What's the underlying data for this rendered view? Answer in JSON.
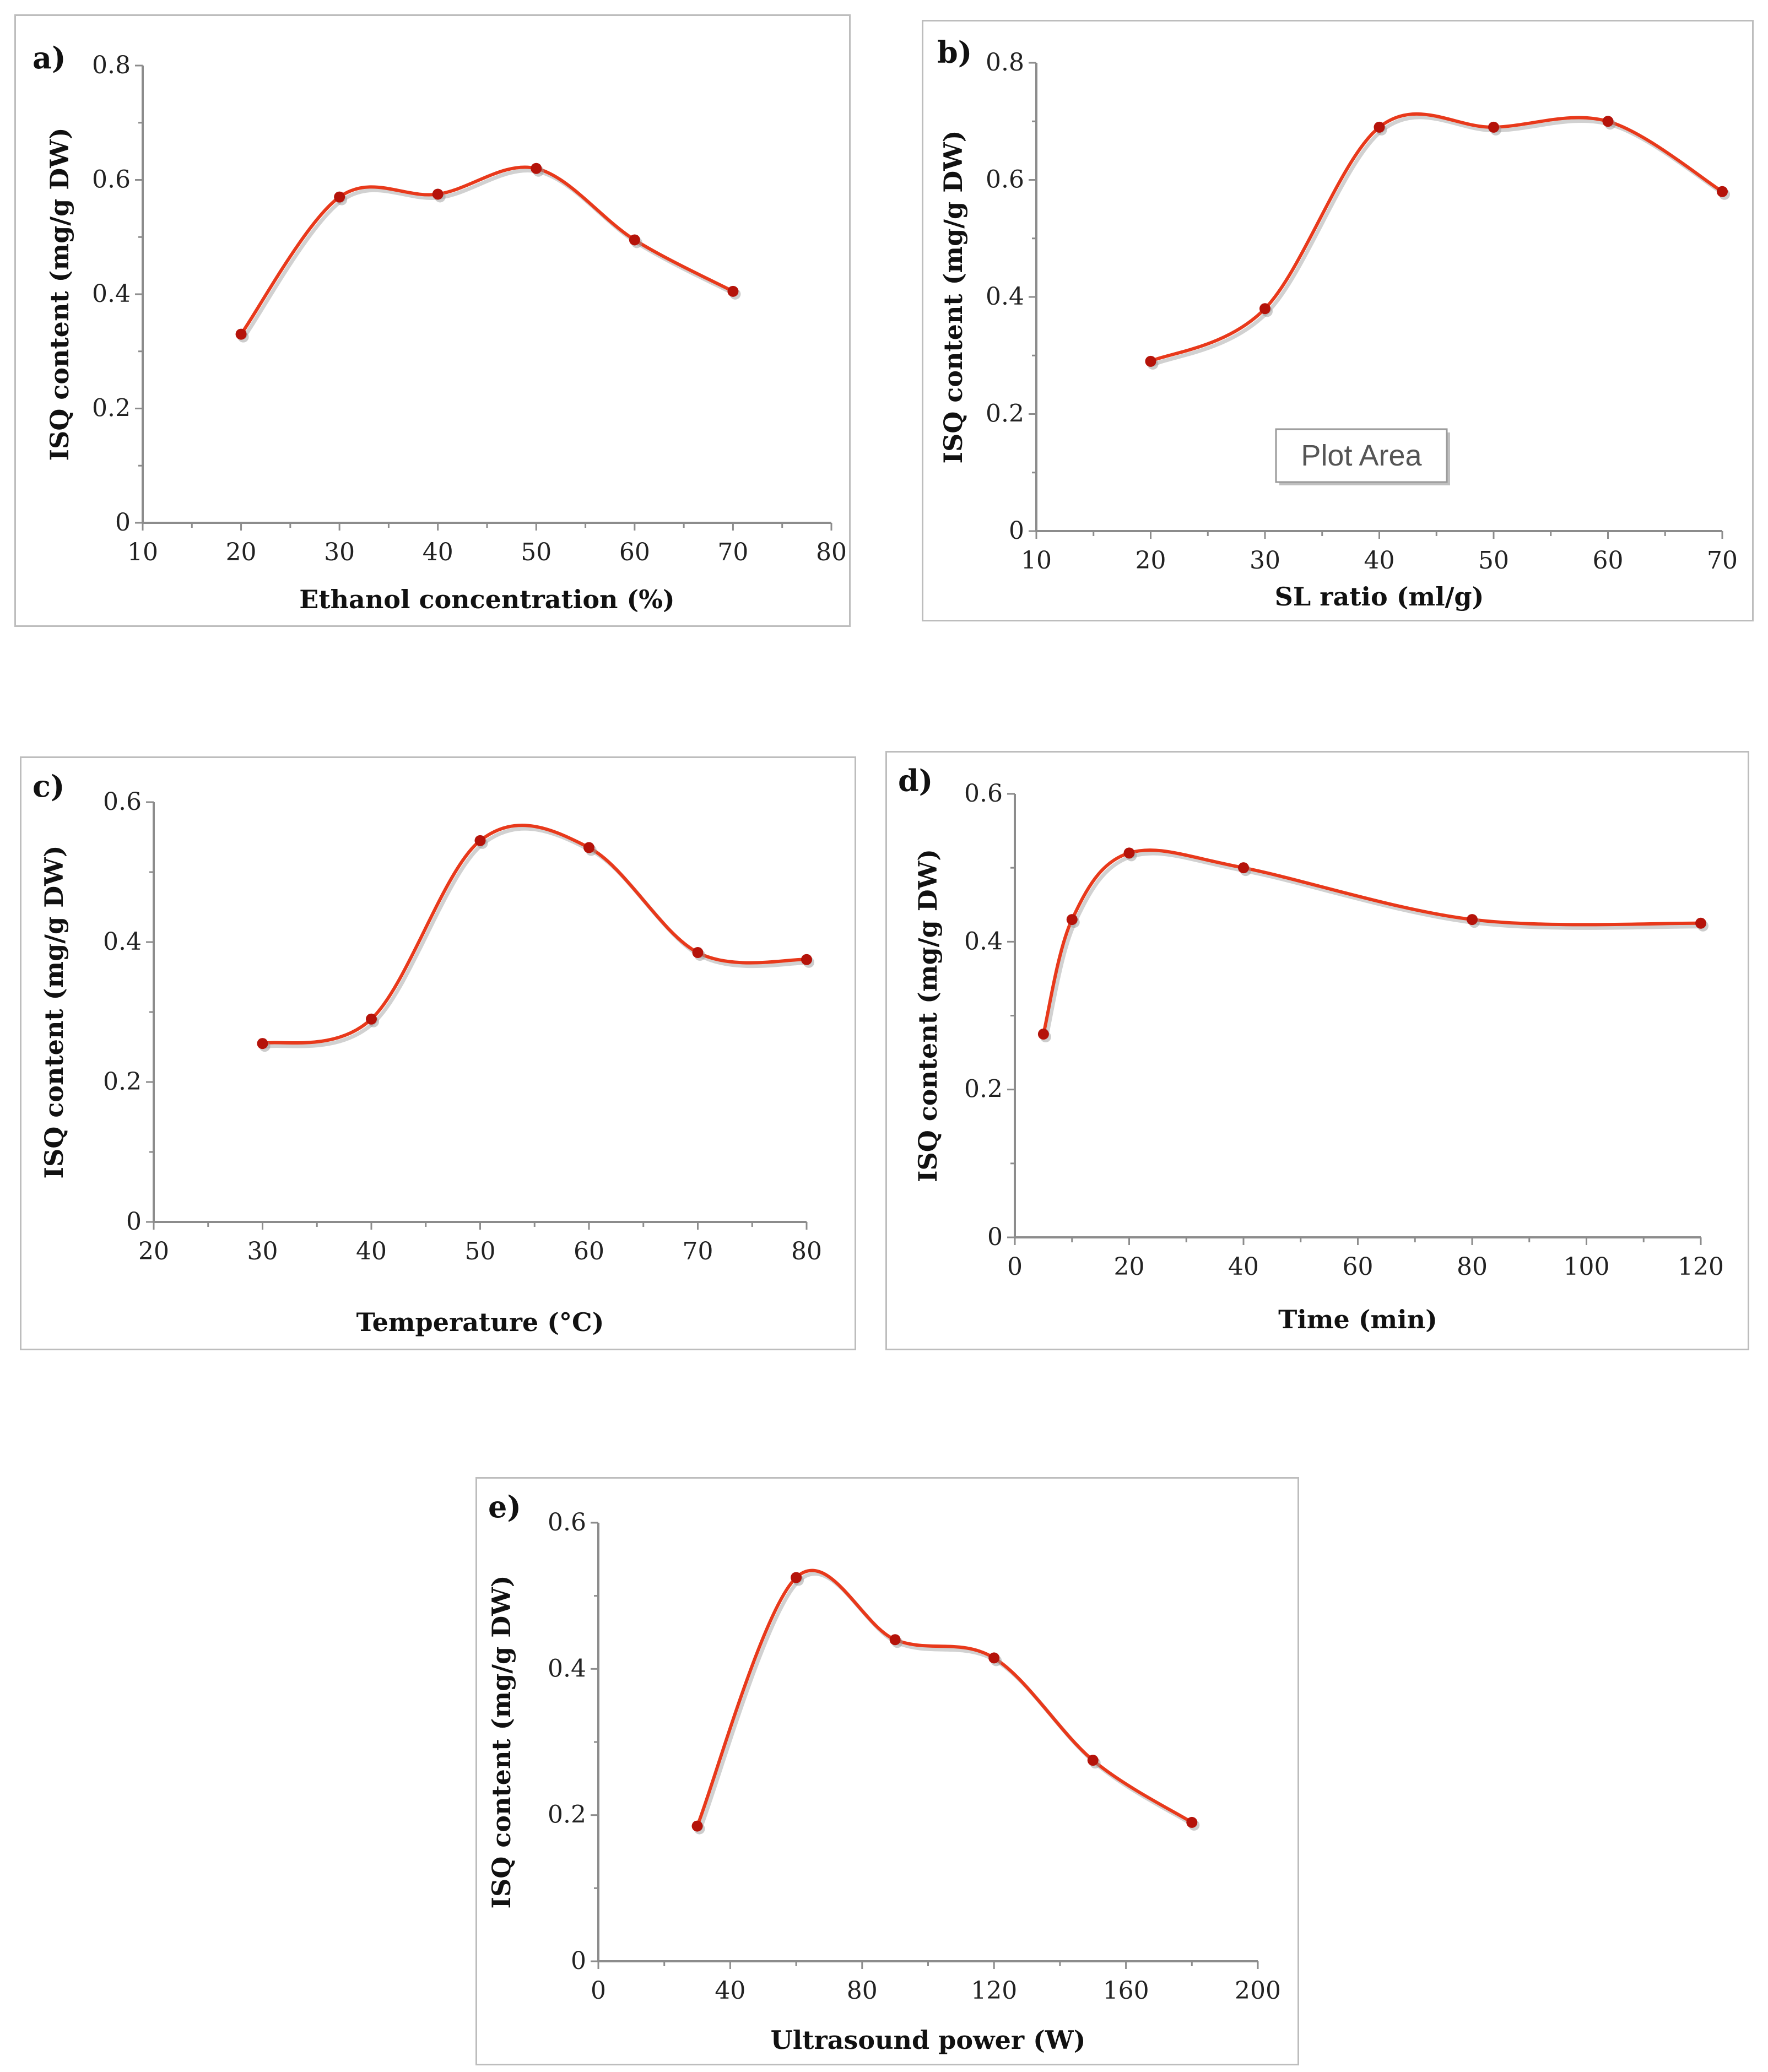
{
  "figure": {
    "line_color": "#e8391b",
    "marker_color": "#b5130a"
  },
  "chart_data": [
    {
      "id": "a",
      "type": "line",
      "panel_label": "a)",
      "title": "",
      "xlabel": "Ethanol concentration (%)",
      "ylabel": "ISQ content (mg/g DW)",
      "xlim": [
        10,
        80
      ],
      "ylim": [
        0,
        0.8
      ],
      "xticks": [
        10,
        20,
        30,
        40,
        50,
        60,
        70,
        80
      ],
      "yticks": [
        "0",
        "0.2",
        "0.4",
        "0.6",
        "0.8"
      ],
      "x": [
        20,
        30,
        40,
        50,
        60,
        70
      ],
      "y": [
        0.33,
        0.57,
        0.575,
        0.62,
        0.495,
        0.405
      ]
    },
    {
      "id": "b",
      "type": "line",
      "panel_label": "b)",
      "title": "",
      "xlabel": "SL ratio (ml/g)",
      "ylabel": "ISQ content (mg/g DW)",
      "xlim": [
        10,
        70
      ],
      "ylim": [
        0,
        0.8
      ],
      "xticks": [
        10,
        20,
        30,
        40,
        50,
        60,
        70
      ],
      "yticks": [
        "0",
        "0.2",
        "0.4",
        "0.6",
        "0.8"
      ],
      "x": [
        20,
        30,
        40,
        50,
        60,
        70
      ],
      "y": [
        0.29,
        0.38,
        0.69,
        0.69,
        0.7,
        0.58
      ],
      "annotation": "Plot Area"
    },
    {
      "id": "c",
      "type": "line",
      "panel_label": "c)",
      "title": "",
      "xlabel": "Temperature (°C)",
      "ylabel": "ISQ content (mg/g DW)",
      "xlim": [
        20,
        80
      ],
      "ylim": [
        0,
        0.6
      ],
      "xticks": [
        20,
        30,
        40,
        50,
        60,
        70,
        80
      ],
      "yticks": [
        "0",
        "0.2",
        "0.4",
        "0.6"
      ],
      "x": [
        30,
        40,
        50,
        60,
        70,
        80
      ],
      "y": [
        0.255,
        0.29,
        0.545,
        0.535,
        0.385,
        0.375
      ]
    },
    {
      "id": "d",
      "type": "line",
      "panel_label": "d)",
      "title": "",
      "xlabel": "Time (min)",
      "ylabel": "ISQ content (mg/g DW)",
      "xlim": [
        0,
        120
      ],
      "ylim": [
        0,
        0.6
      ],
      "xticks": [
        0,
        20,
        40,
        60,
        80,
        100,
        120
      ],
      "yticks": [
        "0",
        "0.2",
        "0.4",
        "0.6"
      ],
      "x": [
        5,
        10,
        20,
        40,
        80,
        120
      ],
      "y": [
        0.275,
        0.43,
        0.52,
        0.5,
        0.43,
        0.425
      ]
    },
    {
      "id": "e",
      "type": "line",
      "panel_label": "e)",
      "title": "",
      "xlabel": "Ultrasound power (W)",
      "ylabel": "ISQ content (mg/g DW)",
      "xlim": [
        0,
        200
      ],
      "ylim": [
        0,
        0.6
      ],
      "xticks": [
        0,
        40,
        80,
        120,
        160,
        200
      ],
      "yticks": [
        "0",
        "0.2",
        "0.4",
        "0.6"
      ],
      "x": [
        30,
        60,
        90,
        120,
        150,
        180
      ],
      "y": [
        0.185,
        0.525,
        0.44,
        0.415,
        0.275,
        0.19
      ]
    }
  ]
}
